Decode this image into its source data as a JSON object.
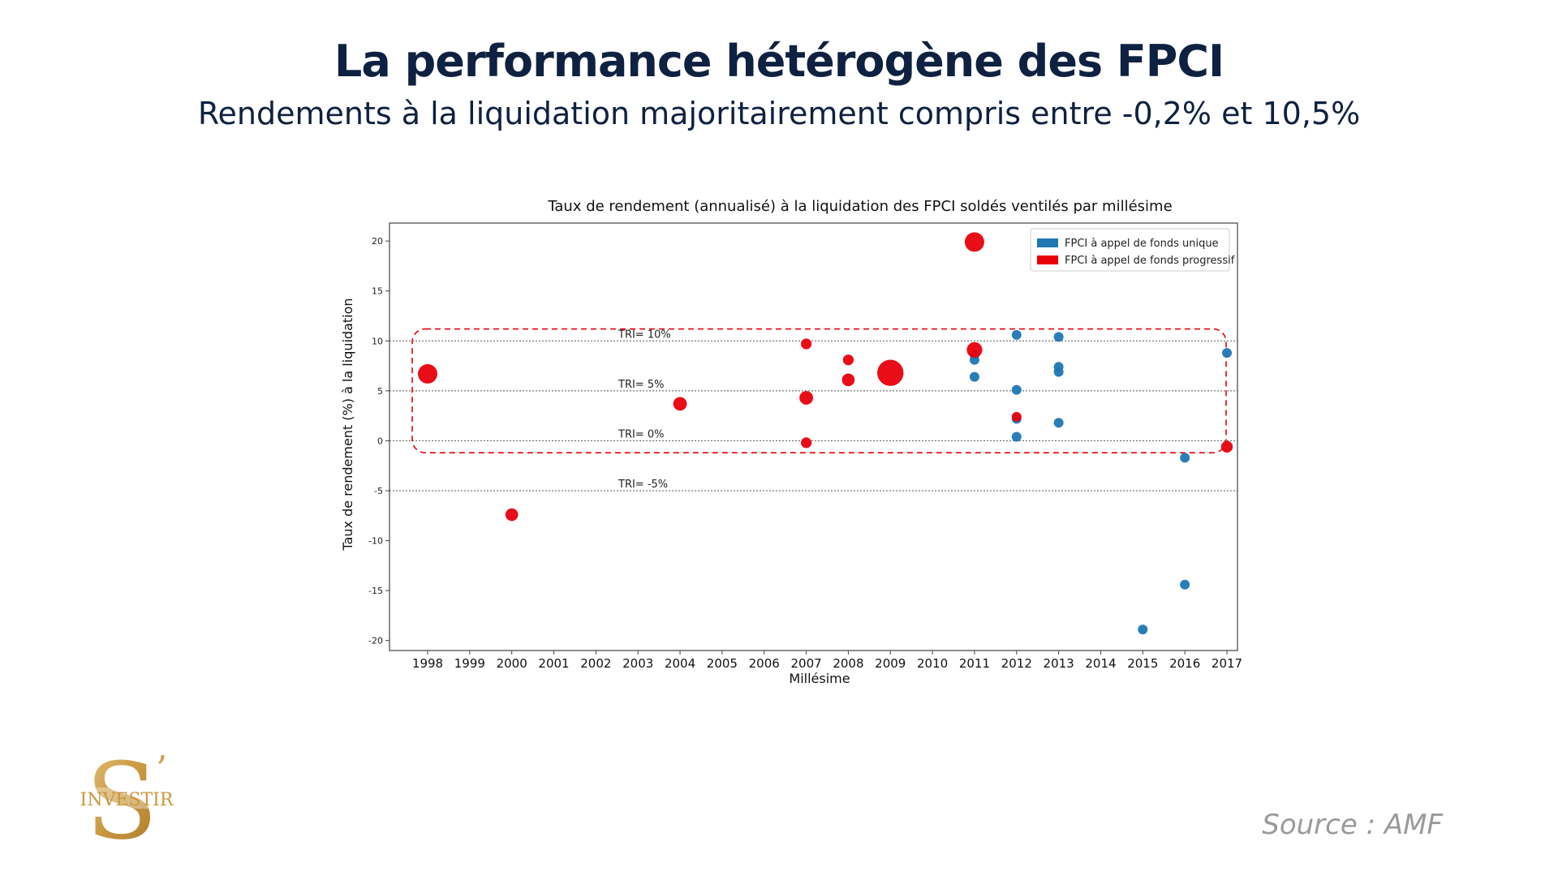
{
  "slide": {
    "title": "La performance hétérogène des FPCI",
    "subtitle": "Rendements à la liquidation majoritairement compris entre -0,2% et 10,5%",
    "source": "Source : AMF",
    "logo_text": "INVESTIR"
  },
  "colors": {
    "title": "#0f2140",
    "unique": "#1f77b4",
    "progressif": "#e8000b",
    "box": "#e8000b",
    "source": "#9a9a9a",
    "logo_gold": "#c9a45c"
  },
  "chart_data": {
    "type": "scatter",
    "title": "Taux de rendement (annualisé) à la liquidation des FPCI soldés ventilés par millésime",
    "xlabel": "Millésime",
    "ylabel": "Taux de rendement (%) à la liquidation",
    "categories": [
      "1998",
      "1999",
      "2000",
      "2001",
      "2002",
      "2003",
      "2004",
      "2005",
      "2006",
      "2007",
      "2008",
      "2009",
      "2010",
      "2011",
      "2012",
      "2013",
      "2014",
      "2015",
      "2016",
      "2017"
    ],
    "ylim": [
      -21,
      21.8
    ],
    "yticks": [
      -20,
      -15,
      -10,
      -5,
      0,
      5,
      10,
      15,
      20
    ],
    "legend_position": "top-right",
    "reference_lines": [
      {
        "y": 10,
        "label": "TRI= 10%"
      },
      {
        "y": 5,
        "label": "TRI= 5%"
      },
      {
        "y": 0,
        "label": "TRI= 0%"
      },
      {
        "y": -5,
        "label": "TRI= -5%"
      }
    ],
    "highlight_range": [
      -1.2,
      11.2
    ],
    "series": [
      {
        "name": "FPCI à appel de fonds unique",
        "color": "#1f77b4",
        "points": [
          {
            "x": "2011",
            "y": 6.4,
            "size": 1
          },
          {
            "x": "2011",
            "y": 8.1,
            "size": 1
          },
          {
            "x": "2011",
            "y": 8.6,
            "size": 1
          },
          {
            "x": "2012",
            "y": 10.6,
            "size": 1
          },
          {
            "x": "2012",
            "y": 5.1,
            "size": 1
          },
          {
            "x": "2012",
            "y": 2.2,
            "size": 1
          },
          {
            "x": "2012",
            "y": 0.4,
            "size": 1
          },
          {
            "x": "2013",
            "y": 10.4,
            "size": 1
          },
          {
            "x": "2013",
            "y": 7.4,
            "size": 1
          },
          {
            "x": "2013",
            "y": 6.9,
            "size": 1
          },
          {
            "x": "2013",
            "y": 1.8,
            "size": 1
          },
          {
            "x": "2015",
            "y": -18.9,
            "size": 1
          },
          {
            "x": "2016",
            "y": -1.7,
            "size": 1
          },
          {
            "x": "2016",
            "y": -14.4,
            "size": 1
          },
          {
            "x": "2017",
            "y": 8.8,
            "size": 1
          }
        ]
      },
      {
        "name": "FPCI à appel de fonds progressif",
        "color": "#e8000b",
        "points": [
          {
            "x": "1998",
            "y": 6.7,
            "size": 2
          },
          {
            "x": "2000",
            "y": -7.4,
            "size": 1.3
          },
          {
            "x": "2004",
            "y": 3.7,
            "size": 1.4
          },
          {
            "x": "2007",
            "y": 9.7,
            "size": 1.1
          },
          {
            "x": "2007",
            "y": 4.3,
            "size": 1.4
          },
          {
            "x": "2007",
            "y": -0.2,
            "size": 1.1
          },
          {
            "x": "2008",
            "y": 8.1,
            "size": 1.1
          },
          {
            "x": "2008",
            "y": 6.1,
            "size": 1.3
          },
          {
            "x": "2009",
            "y": 6.8,
            "size": 2.7
          },
          {
            "x": "2011",
            "y": 19.9,
            "size": 2
          },
          {
            "x": "2011",
            "y": 9.1,
            "size": 1.6
          },
          {
            "x": "2012",
            "y": 2.4,
            "size": 1
          },
          {
            "x": "2017",
            "y": -0.6,
            "size": 1.2
          }
        ]
      }
    ]
  }
}
